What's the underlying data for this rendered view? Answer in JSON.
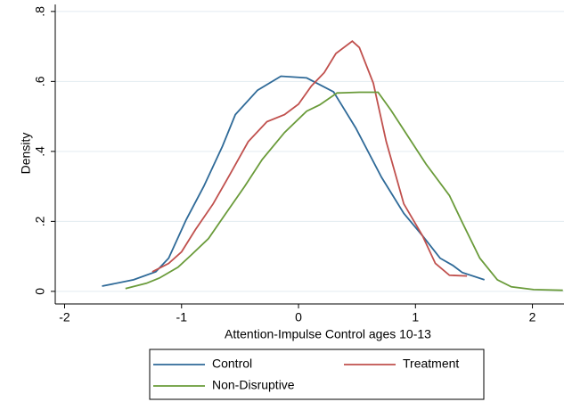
{
  "chart_data": {
    "type": "line",
    "x_label": "Attention-Impulse Control ages 10-13",
    "y_label": "Density",
    "xlim": [
      -2.08,
      2.27
    ],
    "ylim": [
      -0.036,
      0.82
    ],
    "xticks": [
      -2,
      -1,
      0,
      1,
      2
    ],
    "yticks": [
      0,
      {
        "value": 0.2,
        "label": ".2"
      },
      {
        "value": 0.4,
        "label": ".4"
      },
      {
        "value": 0.6,
        "label": ".6"
      },
      {
        "value": 0.8,
        "label": ".8"
      }
    ],
    "grid": true,
    "legend": "bottom",
    "series": [
      {
        "name": "Control",
        "color": "#2f6a98",
        "x": [
          -1.68,
          -1.41,
          -1.22,
          -1.11,
          -0.96,
          -0.81,
          -0.65,
          -0.54,
          -0.35,
          -0.15,
          0.07,
          0.3,
          0.49,
          0.71,
          0.9,
          1.06,
          1.21,
          1.32,
          1.4,
          1.59
        ],
        "values": [
          0.015,
          0.033,
          0.056,
          0.095,
          0.205,
          0.3,
          0.415,
          0.505,
          0.575,
          0.615,
          0.61,
          0.57,
          0.467,
          0.326,
          0.223,
          0.159,
          0.095,
          0.074,
          0.054,
          0.033
        ]
      },
      {
        "name": "Treatment",
        "color": "#c0504d",
        "x": [
          -1.25,
          -1.11,
          -1.0,
          -0.88,
          -0.73,
          -0.58,
          -0.43,
          -0.27,
          -0.12,
          0,
          0.11,
          0.22,
          0.32,
          0.46,
          0.52,
          0.64,
          0.75,
          0.9,
          1.06,
          1.17,
          1.29,
          1.44
        ],
        "values": [
          0.056,
          0.08,
          0.113,
          0.177,
          0.25,
          0.338,
          0.428,
          0.485,
          0.505,
          0.535,
          0.587,
          0.625,
          0.68,
          0.715,
          0.697,
          0.595,
          0.428,
          0.25,
          0.159,
          0.08,
          0.046,
          0.044
        ]
      },
      {
        "name": "Non-Disruptive",
        "color": "#6a9b3a",
        "x": [
          -1.48,
          -1.3,
          -1.19,
          -1.03,
          -0.92,
          -0.77,
          -0.62,
          -0.46,
          -0.31,
          -0.12,
          0.07,
          0.18,
          0.33,
          0.52,
          0.68,
          0.79,
          0.94,
          1.09,
          1.29,
          1.4,
          1.55,
          1.7,
          1.82,
          2.01,
          2.26
        ],
        "values": [
          0.008,
          0.023,
          0.038,
          0.069,
          0.103,
          0.151,
          0.223,
          0.3,
          0.377,
          0.454,
          0.515,
          0.533,
          0.567,
          0.569,
          0.569,
          0.518,
          0.441,
          0.364,
          0.274,
          0.197,
          0.095,
          0.033,
          0.013,
          0.005,
          0.003
        ]
      }
    ]
  }
}
